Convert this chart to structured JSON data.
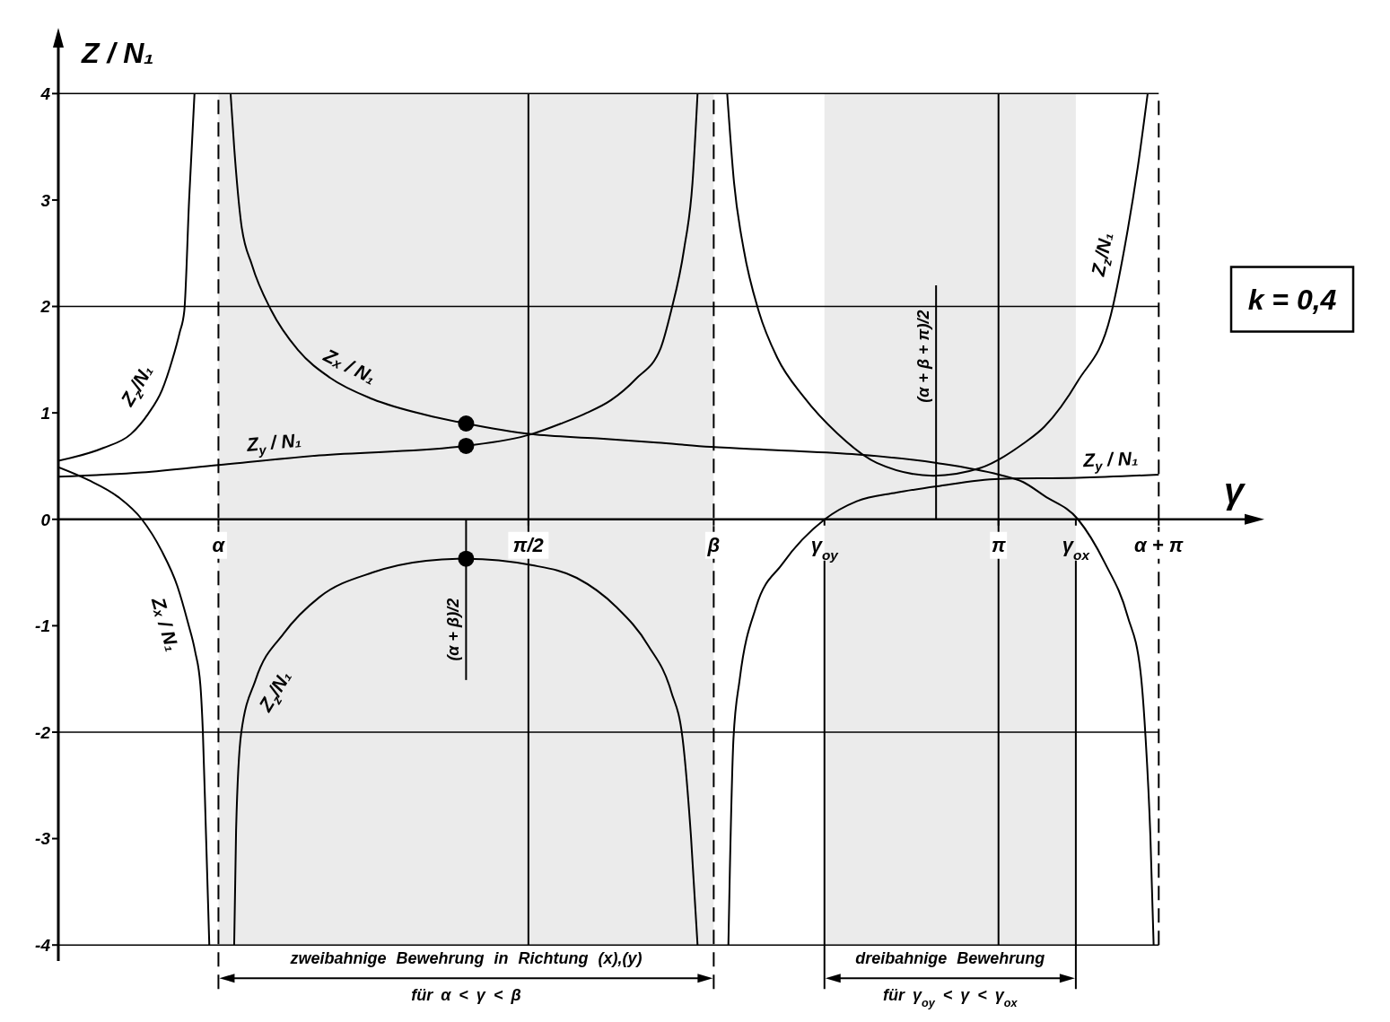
{
  "chart_data": {
    "type": "line",
    "xlabel": "γ",
    "ylabel": "Z / N₁",
    "xlim": [
      0,
      4.0
    ],
    "ylim": [
      -4.15,
      4.5
    ],
    "xticks": [
      {
        "value": 0.535,
        "label": "α"
      },
      {
        "value": 1.5708,
        "label": "π/2"
      },
      {
        "value": 2.19,
        "label": "β"
      },
      {
        "value": 2.56,
        "label": "γ$_{oy}$"
      },
      {
        "value": 3.1416,
        "label": "π"
      },
      {
        "value": 3.4,
        "label": "γ$_{ox}$"
      },
      {
        "value": 3.677,
        "label": "α + π"
      }
    ],
    "yticks": [
      -4,
      -3,
      -2,
      -1,
      0,
      1,
      2,
      3,
      4
    ],
    "series": [
      {
        "name": "Zₓ / N₁",
        "color": "#000000",
        "x": [
          0,
          0.1,
          0.2,
          0.279,
          0.344,
          0.398,
          0.433,
          0.457,
          0.475,
          0.483,
          0.493,
          0.5045,
          0.535,
          0.5756,
          0.588,
          0.611,
          0.647,
          0.712,
          0.801,
          0.908,
          1.05,
          1.229,
          1.3625,
          1.581,
          1.8,
          2.0,
          2.18,
          2.4,
          2.669,
          2.935,
          3.143,
          3.224,
          3.295,
          3.407,
          3.497,
          3.573,
          3.616,
          3.633,
          3.649,
          3.66
        ],
        "values": [
          0.49,
          0.37,
          0.21,
          0,
          -0.29,
          -0.63,
          -0.97,
          -1.24,
          -1.57,
          -2.0,
          -2.92,
          -4.0,
          null,
          4.0,
          3.48,
          2.78,
          2.39,
          1.96,
          1.59,
          1.33,
          1.13,
          0.98,
          0.9,
          0.8,
          0.76,
          0.72,
          0.68,
          0.65,
          0.61,
          0.53,
          0.42,
          0.35,
          0.22,
          0,
          -0.41,
          -0.91,
          -1.43,
          -2.05,
          -2.97,
          -4.0
        ]
      },
      {
        "name": "Z$_{y}$ / N₁",
        "color": "#000000",
        "x": [
          0,
          0.279,
          0.535,
          0.872,
          1.3625,
          1.581,
          1.68,
          1.758,
          1.847,
          1.93,
          2.013,
          2.047,
          2.091,
          2.119,
          2.136,
          2.19,
          2.239,
          2.244,
          2.256,
          2.277,
          2.332,
          2.419,
          2.561,
          2.668,
          2.8,
          2.935,
          3.143,
          3.407,
          3.677
        ],
        "values": [
          0.4,
          0.44,
          0.51,
          0.6,
          0.69,
          0.8,
          0.9,
          0.99,
          1.12,
          1.32,
          1.61,
          1.95,
          2.54,
          3.16,
          4.0,
          null,
          -4.0,
          -3.29,
          -2.06,
          -1.5,
          -0.82,
          -0.42,
          0,
          0.17,
          0.25,
          0.31,
          0.38,
          0.39,
          0.42
        ]
      },
      {
        "name": "Z$_{z}$/N₁",
        "color": "#000000",
        "x": [
          0,
          0.15,
          0.242,
          0.3,
          0.346,
          0.381,
          0.405,
          0.421,
          0.437,
          0.455,
          0.535,
          0.5876,
          0.594,
          0.611,
          0.659,
          0.754,
          0.873,
          1.05,
          1.229,
          1.3625,
          1.581,
          1.732,
          1.863,
          1.972,
          2.048,
          2.086,
          2.114,
          2.136,
          2.19,
          2.235,
          2.258,
          2.29,
          2.341,
          2.402,
          2.491,
          2.602,
          2.735,
          2.924,
          3.079,
          3.224,
          3.295,
          3.407,
          3.517,
          3.562,
          3.607,
          3.64
        ],
        "values": [
          0.55,
          0.67,
          0.8,
          0.99,
          1.21,
          1.5,
          1.75,
          1.96,
          3.0,
          4.0,
          null,
          -4.0,
          -2.92,
          -2.01,
          -1.51,
          -1.07,
          -0.73,
          -0.5,
          -0.39,
          -0.37,
          -0.43,
          -0.55,
          -0.82,
          -1.19,
          -1.62,
          -2.06,
          -2.98,
          -4.0,
          null,
          4.0,
          3.16,
          2.54,
          1.95,
          1.52,
          1.15,
          0.81,
          0.53,
          0.41,
          0.48,
          0.71,
          0.87,
          1.3,
          1.92,
          2.54,
          3.31,
          4.0
        ]
      },
      {
        "type": "scatter",
        "color": "#000000",
        "marker": "circle",
        "x": [
          1.3625,
          1.3625,
          1.3625
        ],
        "values": [
          0.9,
          0.69,
          -0.37
        ]
      }
    ],
    "ref_lines": [
      {
        "axis": "y",
        "value": 4
      },
      {
        "axis": "y",
        "value": 2
      },
      {
        "axis": "y",
        "value": -2
      },
      {
        "axis": "y",
        "value": -4
      },
      {
        "axis": "x",
        "value": 1.5708
      },
      {
        "axis": "x",
        "value": 3.1416
      },
      {
        "axis": "x",
        "value": 0.535,
        "line_style": "dashed"
      },
      {
        "axis": "x",
        "value": 2.19,
        "line_style": "dashed"
      },
      {
        "axis": "x",
        "value": 3.677,
        "line_style": "dashed"
      },
      {
        "axis": "x",
        "value": 2.56
      },
      {
        "axis": "x",
        "value": 3.4
      },
      {
        "axis": "x",
        "value": 1.3625,
        "label": "(α + β)/2"
      },
      {
        "axis": "x",
        "value": 2.933,
        "label": "(α + β + π)/2"
      }
    ],
    "bands": [
      {
        "axis": "x",
        "from": 0.535,
        "to": 2.19,
        "label": "zweibahnige Bewehrung in Richtung (x),(y)",
        "color": "#ebebeb"
      },
      {
        "axis": "x",
        "from": 2.56,
        "to": 3.4,
        "label": "dreibahnige Bewehrung",
        "color": "#ebebeb"
      }
    ],
    "annotations": [
      "k = 0,4",
      "für α < γ < β",
      "für γ$_{oy}$ < γ < γ$_{ox}$"
    ]
  }
}
